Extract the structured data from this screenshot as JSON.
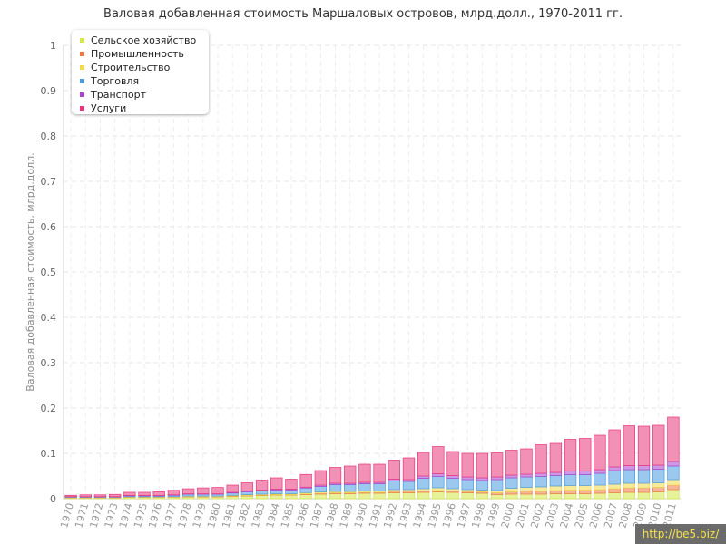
{
  "chart_data": {
    "type": "bar",
    "stacked": true,
    "title": "Валовая добавленная стоимость Маршаловых островов, млрд.долл., 1970-2011 гг.",
    "xlabel": "",
    "ylabel": "Валовая добавленная стоимость, млрд.долл.",
    "ylim": [
      0,
      1
    ],
    "yticks": [
      "0",
      "0.1",
      "0.2",
      "0.3",
      "0.4",
      "0.5",
      "0.6",
      "0.7",
      "0.8",
      "0.9",
      "1"
    ],
    "grid": true,
    "legend_position": "top-left",
    "categories": [
      "1970",
      "1971",
      "1972",
      "1973",
      "1974",
      "1975",
      "1976",
      "1977",
      "1978",
      "1979",
      "1980",
      "1981",
      "1982",
      "1983",
      "1984",
      "1985",
      "1986",
      "1987",
      "1988",
      "1989",
      "1990",
      "1991",
      "1992",
      "1993",
      "1994",
      "1995",
      "1996",
      "1997",
      "1998",
      "1999",
      "2000",
      "2001",
      "2002",
      "2003",
      "2004",
      "2005",
      "2006",
      "2007",
      "2008",
      "2009",
      "2010",
      "2011"
    ],
    "series": [
      {
        "name": "Сельское хозяйство",
        "color": "#d4e84a",
        "values": [
          0.002,
          0.002,
          0.002,
          0.002,
          0.003,
          0.003,
          0.003,
          0.003,
          0.004,
          0.004,
          0.004,
          0.005,
          0.006,
          0.007,
          0.008,
          0.008,
          0.009,
          0.01,
          0.011,
          0.011,
          0.012,
          0.012,
          0.013,
          0.013,
          0.014,
          0.015,
          0.014,
          0.013,
          0.012,
          0.009,
          0.01,
          0.01,
          0.01,
          0.011,
          0.011,
          0.011,
          0.012,
          0.013,
          0.014,
          0.014,
          0.015,
          0.02
        ]
      },
      {
        "name": "Промышленность",
        "color": "#ee7744",
        "values": [
          0.0005,
          0.0005,
          0.0005,
          0.0005,
          0.0005,
          0.0005,
          0.0005,
          0.0005,
          0.0008,
          0.0008,
          0.0008,
          0.001,
          0.001,
          0.001,
          0.001,
          0.001,
          0.0015,
          0.002,
          0.002,
          0.002,
          0.002,
          0.002,
          0.003,
          0.003,
          0.003,
          0.003,
          0.003,
          0.003,
          0.003,
          0.004,
          0.005,
          0.006,
          0.006,
          0.007,
          0.008,
          0.008,
          0.008,
          0.009,
          0.01,
          0.01,
          0.01,
          0.01
        ]
      },
      {
        "name": "Строительство",
        "color": "#f0d84a",
        "values": [
          0.0005,
          0.0005,
          0.0005,
          0.0005,
          0.0008,
          0.0008,
          0.0008,
          0.001,
          0.001,
          0.001,
          0.001,
          0.0015,
          0.002,
          0.002,
          0.002,
          0.002,
          0.003,
          0.003,
          0.003,
          0.003,
          0.003,
          0.003,
          0.004,
          0.004,
          0.005,
          0.006,
          0.005,
          0.004,
          0.004,
          0.005,
          0.008,
          0.009,
          0.01,
          0.01,
          0.01,
          0.01,
          0.01,
          0.01,
          0.01,
          0.01,
          0.01,
          0.012
        ]
      },
      {
        "name": "Торговля",
        "color": "#4a9be0",
        "values": [
          0.001,
          0.001,
          0.001,
          0.001,
          0.002,
          0.002,
          0.002,
          0.003,
          0.004,
          0.004,
          0.004,
          0.005,
          0.006,
          0.007,
          0.008,
          0.008,
          0.01,
          0.012,
          0.015,
          0.015,
          0.016,
          0.016,
          0.019,
          0.018,
          0.023,
          0.025,
          0.023,
          0.022,
          0.021,
          0.024,
          0.023,
          0.023,
          0.023,
          0.023,
          0.024,
          0.024,
          0.026,
          0.03,
          0.03,
          0.03,
          0.03,
          0.03
        ]
      },
      {
        "name": "Транспорт",
        "color": "#aa44cc",
        "values": [
          0.0005,
          0.0005,
          0.0005,
          0.0005,
          0.0008,
          0.0008,
          0.0008,
          0.001,
          0.001,
          0.001,
          0.001,
          0.0015,
          0.002,
          0.002,
          0.002,
          0.002,
          0.002,
          0.003,
          0.003,
          0.003,
          0.003,
          0.003,
          0.004,
          0.004,
          0.005,
          0.006,
          0.006,
          0.006,
          0.006,
          0.006,
          0.006,
          0.006,
          0.007,
          0.007,
          0.008,
          0.008,
          0.008,
          0.008,
          0.009,
          0.009,
          0.009,
          0.01
        ]
      },
      {
        "name": "Услуги",
        "color": "#e8357a",
        "values": [
          0.003,
          0.004,
          0.004,
          0.005,
          0.007,
          0.007,
          0.008,
          0.01,
          0.011,
          0.013,
          0.014,
          0.016,
          0.018,
          0.022,
          0.025,
          0.022,
          0.028,
          0.032,
          0.035,
          0.038,
          0.04,
          0.04,
          0.042,
          0.048,
          0.052,
          0.06,
          0.053,
          0.052,
          0.054,
          0.053,
          0.055,
          0.056,
          0.063,
          0.064,
          0.07,
          0.072,
          0.076,
          0.082,
          0.088,
          0.087,
          0.088,
          0.098
        ]
      }
    ]
  },
  "watermark": "http://be5.biz/"
}
